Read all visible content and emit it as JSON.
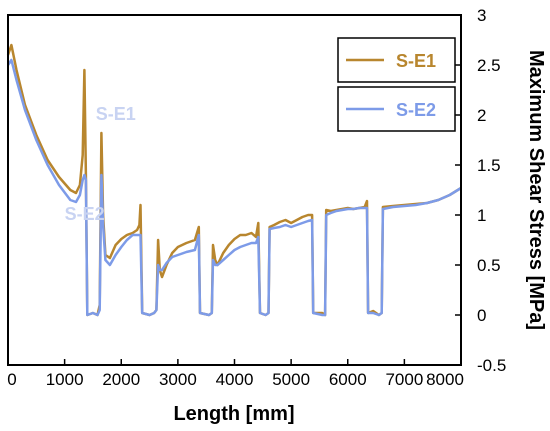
{
  "chart_data": {
    "type": "line",
    "title": "",
    "xlabel": "Length [mm]",
    "ylabel": "Maximum Shear Stress [MPa]",
    "xlim": [
      0,
      8000
    ],
    "ylim": [
      -0.5,
      3
    ],
    "x_ticks": [
      "0",
      "1000",
      "2000",
      "3000",
      "4000",
      "5000",
      "6000",
      "7000",
      "8000"
    ],
    "y_ticks": [
      "-0.5",
      "0",
      "0.5",
      "1",
      "1.5",
      "2",
      "2.5",
      "3"
    ],
    "y_axis_side": "right",
    "grid": false,
    "legend_position": "top-right",
    "series": [
      {
        "name": "S-E1",
        "color": "#b8862e",
        "points": [
          [
            0,
            2.6
          ],
          [
            60,
            2.7
          ],
          [
            150,
            2.45
          ],
          [
            300,
            2.1
          ],
          [
            500,
            1.8
          ],
          [
            700,
            1.55
          ],
          [
            900,
            1.38
          ],
          [
            1100,
            1.25
          ],
          [
            1200,
            1.22
          ],
          [
            1270,
            1.3
          ],
          [
            1320,
            1.6
          ],
          [
            1350,
            2.45
          ],
          [
            1375,
            1.4
          ],
          [
            1400,
            0.0
          ],
          [
            1500,
            0.02
          ],
          [
            1580,
            0.0
          ],
          [
            1620,
            0.1
          ],
          [
            1650,
            1.82
          ],
          [
            1680,
            1.0
          ],
          [
            1720,
            0.6
          ],
          [
            1800,
            0.57
          ],
          [
            1900,
            0.7
          ],
          [
            2000,
            0.76
          ],
          [
            2100,
            0.8
          ],
          [
            2200,
            0.82
          ],
          [
            2280,
            0.85
          ],
          [
            2320,
            0.9
          ],
          [
            2340,
            1.1
          ],
          [
            2370,
            0.02
          ],
          [
            2500,
            0.0
          ],
          [
            2580,
            0.02
          ],
          [
            2620,
            0.05
          ],
          [
            2650,
            0.75
          ],
          [
            2680,
            0.45
          ],
          [
            2720,
            0.38
          ],
          [
            2800,
            0.5
          ],
          [
            2900,
            0.62
          ],
          [
            3000,
            0.68
          ],
          [
            3150,
            0.72
          ],
          [
            3300,
            0.75
          ],
          [
            3370,
            0.88
          ],
          [
            3390,
            0.02
          ],
          [
            3550,
            0.0
          ],
          [
            3600,
            0.02
          ],
          [
            3620,
            0.7
          ],
          [
            3660,
            0.55
          ],
          [
            3700,
            0.5
          ],
          [
            3800,
            0.62
          ],
          [
            3900,
            0.7
          ],
          [
            4000,
            0.76
          ],
          [
            4100,
            0.8
          ],
          [
            4200,
            0.8
          ],
          [
            4300,
            0.82
          ],
          [
            4380,
            0.78
          ],
          [
            4420,
            0.92
          ],
          [
            4450,
            0.02
          ],
          [
            4550,
            0.0
          ],
          [
            4600,
            0.02
          ],
          [
            4620,
            0.88
          ],
          [
            4700,
            0.9
          ],
          [
            4800,
            0.93
          ],
          [
            4900,
            0.95
          ],
          [
            5000,
            0.92
          ],
          [
            5100,
            0.95
          ],
          [
            5200,
            0.98
          ],
          [
            5300,
            1.0
          ],
          [
            5370,
            1.0
          ],
          [
            5390,
            0.02
          ],
          [
            5550,
            0.02
          ],
          [
            5600,
            0.0
          ],
          [
            5620,
            1.05
          ],
          [
            5700,
            1.04
          ],
          [
            5800,
            1.05
          ],
          [
            5900,
            1.06
          ],
          [
            6000,
            1.07
          ],
          [
            6100,
            1.06
          ],
          [
            6200,
            1.07
          ],
          [
            6300,
            1.08
          ],
          [
            6340,
            1.14
          ],
          [
            6360,
            0.02
          ],
          [
            6450,
            0.04
          ],
          [
            6550,
            0.0
          ],
          [
            6600,
            0.02
          ],
          [
            6620,
            1.08
          ],
          [
            6800,
            1.09
          ],
          [
            7000,
            1.1
          ],
          [
            7200,
            1.11
          ],
          [
            7400,
            1.12
          ],
          [
            7600,
            1.15
          ],
          [
            7800,
            1.2
          ],
          [
            8000,
            1.27
          ]
        ]
      },
      {
        "name": "S-E2",
        "color": "#7d9be8",
        "points": [
          [
            0,
            2.5
          ],
          [
            60,
            2.55
          ],
          [
            150,
            2.35
          ],
          [
            300,
            2.05
          ],
          [
            500,
            1.75
          ],
          [
            700,
            1.5
          ],
          [
            900,
            1.3
          ],
          [
            1100,
            1.15
          ],
          [
            1200,
            1.13
          ],
          [
            1270,
            1.2
          ],
          [
            1320,
            1.35
          ],
          [
            1350,
            1.4
          ],
          [
            1375,
            1.35
          ],
          [
            1400,
            0.0
          ],
          [
            1500,
            0.02
          ],
          [
            1580,
            0.0
          ],
          [
            1620,
            0.05
          ],
          [
            1650,
            1.4
          ],
          [
            1680,
            0.9
          ],
          [
            1720,
            0.55
          ],
          [
            1800,
            0.5
          ],
          [
            1900,
            0.6
          ],
          [
            2000,
            0.68
          ],
          [
            2100,
            0.75
          ],
          [
            2200,
            0.8
          ],
          [
            2280,
            0.8
          ],
          [
            2320,
            0.8
          ],
          [
            2340,
            0.8
          ],
          [
            2370,
            0.02
          ],
          [
            2500,
            0.0
          ],
          [
            2580,
            0.02
          ],
          [
            2620,
            0.05
          ],
          [
            2650,
            0.5
          ],
          [
            2680,
            0.45
          ],
          [
            2720,
            0.45
          ],
          [
            2800,
            0.52
          ],
          [
            2900,
            0.58
          ],
          [
            3000,
            0.6
          ],
          [
            3150,
            0.63
          ],
          [
            3300,
            0.65
          ],
          [
            3370,
            0.8
          ],
          [
            3390,
            0.02
          ],
          [
            3550,
            0.0
          ],
          [
            3600,
            0.02
          ],
          [
            3620,
            0.55
          ],
          [
            3660,
            0.5
          ],
          [
            3700,
            0.5
          ],
          [
            3800,
            0.55
          ],
          [
            3900,
            0.6
          ],
          [
            4000,
            0.65
          ],
          [
            4100,
            0.68
          ],
          [
            4200,
            0.7
          ],
          [
            4300,
            0.72
          ],
          [
            4380,
            0.72
          ],
          [
            4420,
            0.78
          ],
          [
            4450,
            0.02
          ],
          [
            4550,
            0.0
          ],
          [
            4600,
            0.02
          ],
          [
            4620,
            0.86
          ],
          [
            4700,
            0.87
          ],
          [
            4800,
            0.88
          ],
          [
            4900,
            0.9
          ],
          [
            5000,
            0.88
          ],
          [
            5100,
            0.9
          ],
          [
            5200,
            0.92
          ],
          [
            5300,
            0.94
          ],
          [
            5370,
            0.95
          ],
          [
            5390,
            0.02
          ],
          [
            5550,
            0.0
          ],
          [
            5600,
            0.0
          ],
          [
            5620,
            1.0
          ],
          [
            5700,
            1.02
          ],
          [
            5800,
            1.04
          ],
          [
            5900,
            1.05
          ],
          [
            6000,
            1.06
          ],
          [
            6100,
            1.06
          ],
          [
            6200,
            1.07
          ],
          [
            6300,
            1.07
          ],
          [
            6340,
            1.07
          ],
          [
            6360,
            0.02
          ],
          [
            6450,
            0.02
          ],
          [
            6550,
            0.0
          ],
          [
            6600,
            0.02
          ],
          [
            6620,
            1.06
          ],
          [
            6800,
            1.08
          ],
          [
            7000,
            1.09
          ],
          [
            7200,
            1.1
          ],
          [
            7400,
            1.12
          ],
          [
            7600,
            1.15
          ],
          [
            7800,
            1.2
          ],
          [
            8000,
            1.27
          ]
        ]
      }
    ],
    "ghost_labels": [
      {
        "text": "S-E1",
        "x": 1550,
        "y": 1.95,
        "color": "#c8d3f2"
      },
      {
        "text": "S-E2",
        "x": 1000,
        "y": 0.95,
        "color": "#c8d3f2"
      }
    ]
  }
}
